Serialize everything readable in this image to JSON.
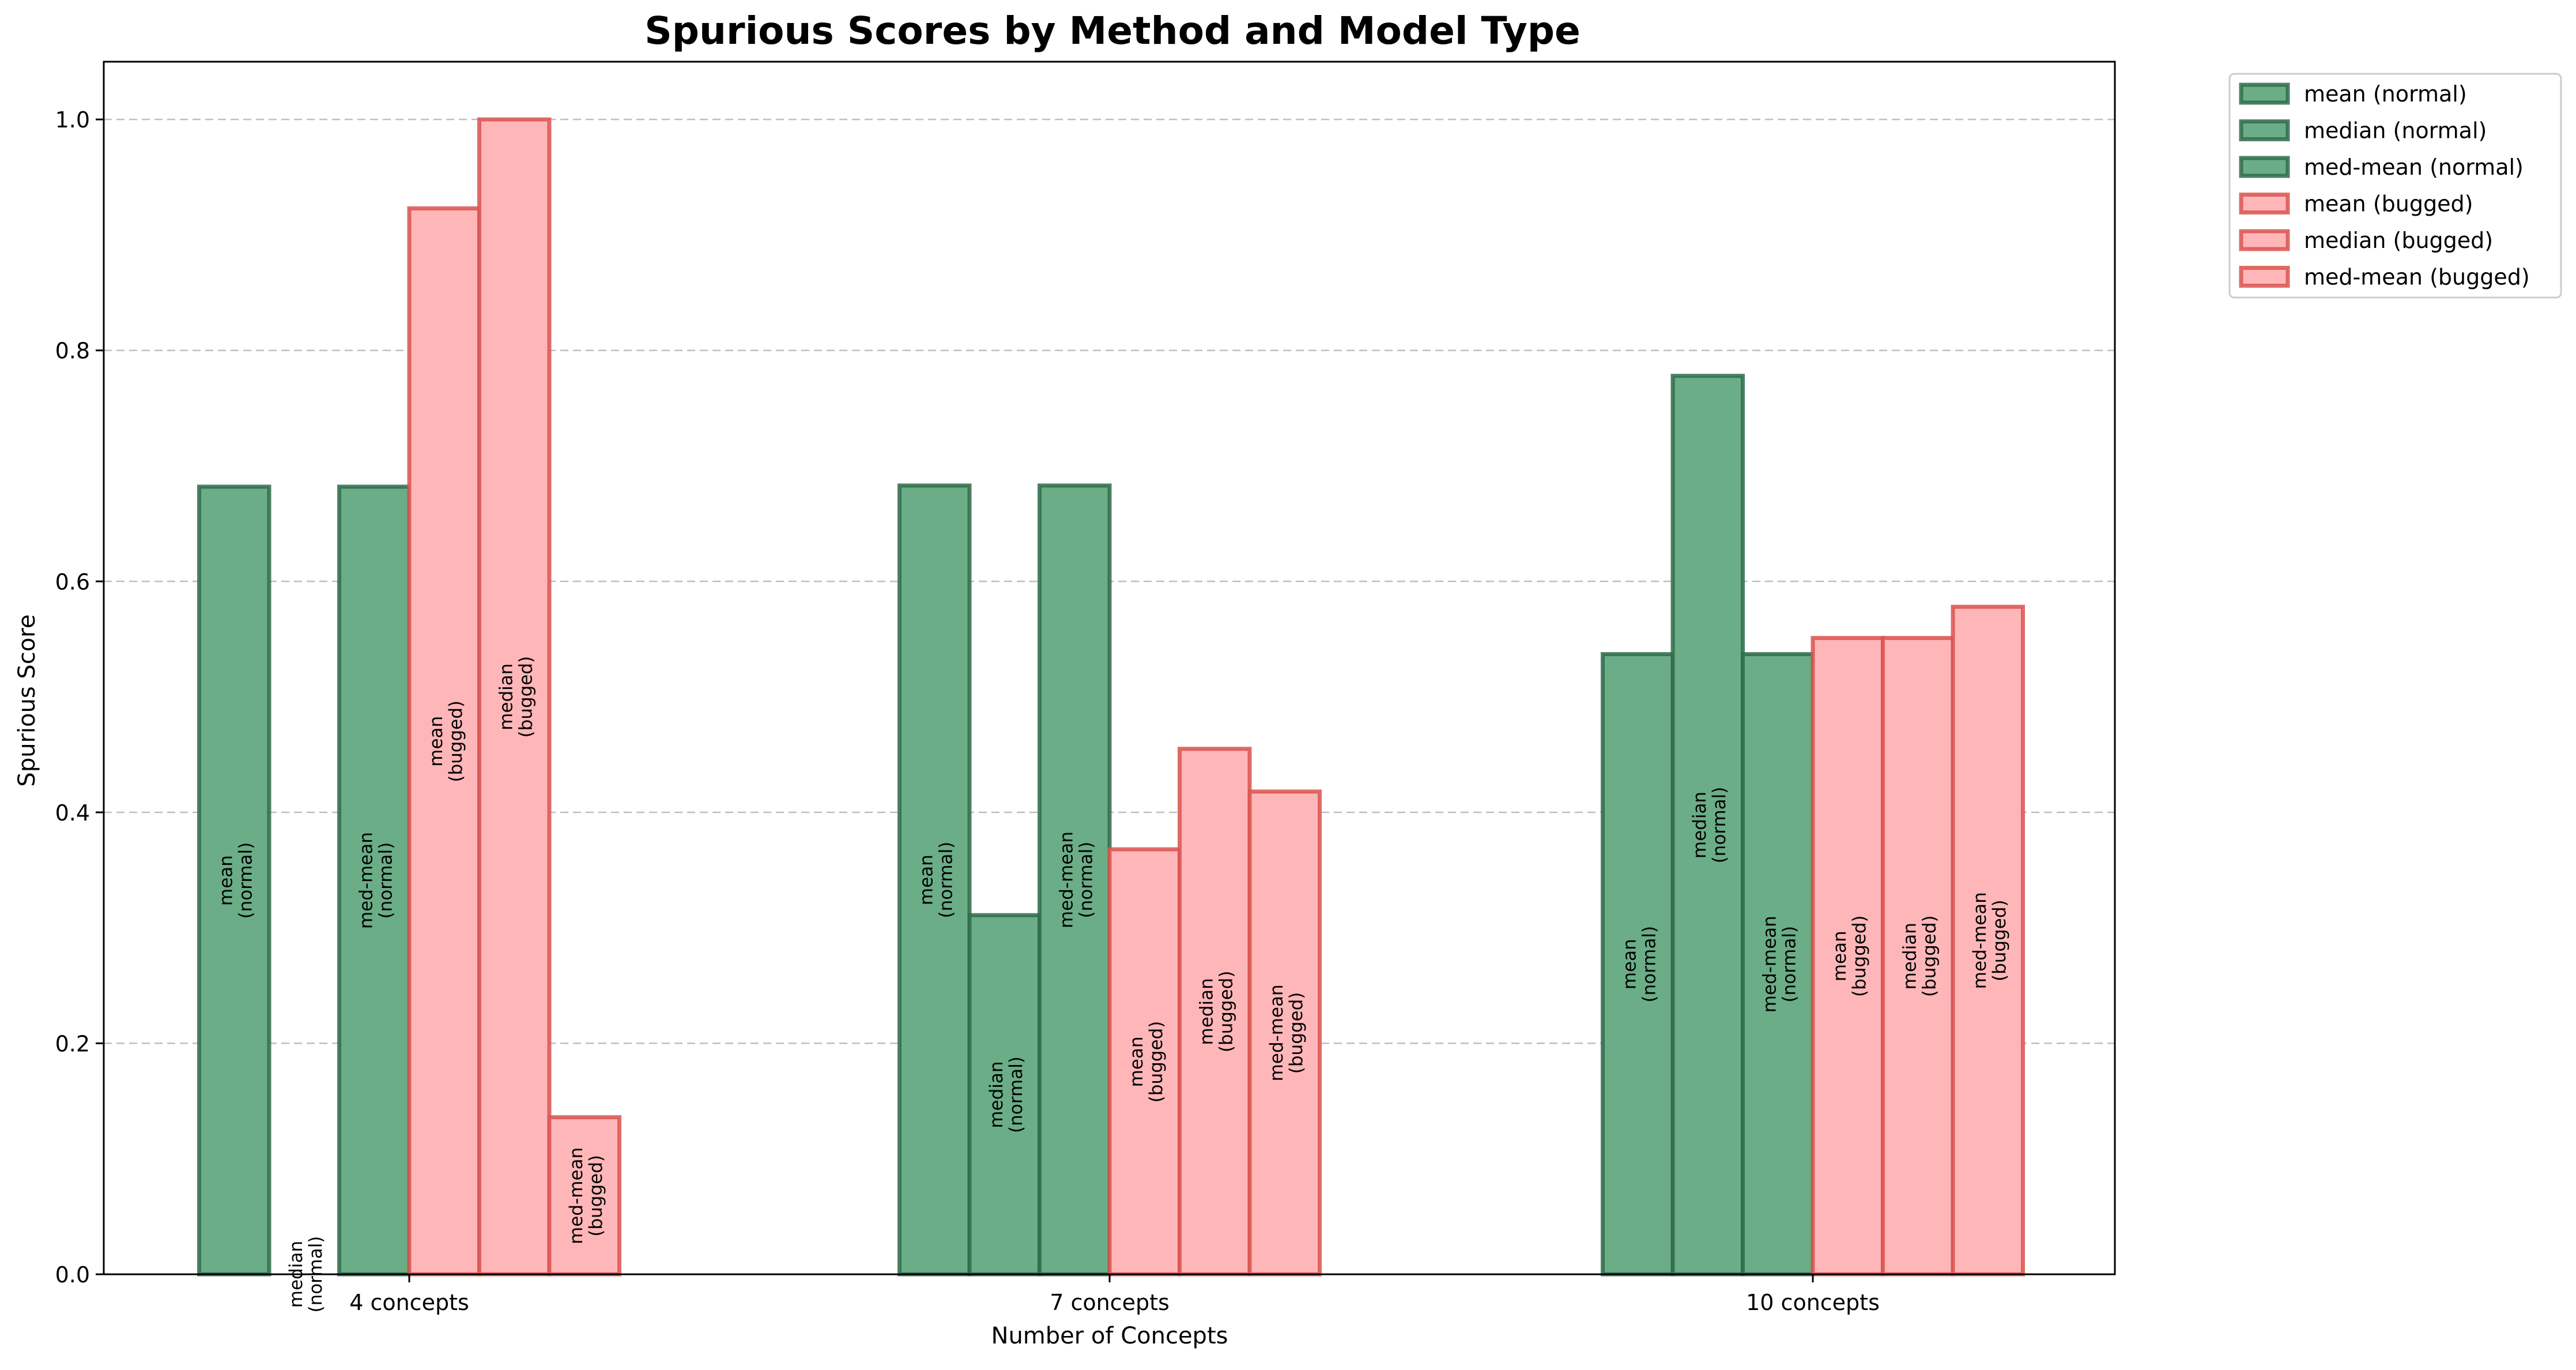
{
  "chart_data": {
    "type": "bar",
    "title": "Spurious Scores by Method and Model Type",
    "xlabel": "Number of Concepts",
    "ylabel": "Spurious Score",
    "categories": [
      "4 concepts",
      "7 concepts",
      "10 concepts"
    ],
    "ylim": [
      0,
      1.05
    ],
    "yticks": [
      "0.0",
      "0.2",
      "0.4",
      "0.6",
      "0.8",
      "1.0"
    ],
    "grid": "y dashed",
    "legend_position": "outside top-right",
    "colors": {
      "normal_fill": "#6aad87",
      "normal_edge": "#2f6b4a",
      "bugged_fill": "#ffb6b9",
      "bugged_edge": "#d9534f"
    },
    "series": [
      {
        "name": "mean (normal)",
        "bar_label": [
          "mean",
          "(normal)"
        ],
        "group": "normal",
        "values": [
          0.682,
          0.683,
          0.537
        ]
      },
      {
        "name": "median (normal)",
        "bar_label": [
          "median",
          "(normal)"
        ],
        "group": "normal",
        "values": [
          0.0,
          0.311,
          0.778
        ]
      },
      {
        "name": "med-mean (normal)",
        "bar_label": [
          "med-mean",
          "(normal)"
        ],
        "group": "normal",
        "values": [
          0.682,
          0.683,
          0.537
        ]
      },
      {
        "name": "mean (bugged)",
        "bar_label": [
          "mean",
          "(bugged)"
        ],
        "group": "bugged",
        "values": [
          0.923,
          0.368,
          0.551
        ]
      },
      {
        "name": "median (bugged)",
        "bar_label": [
          "median",
          "(bugged)"
        ],
        "group": "bugged",
        "values": [
          1.0,
          0.455,
          0.551
        ]
      },
      {
        "name": "med-mean (bugged)",
        "bar_label": [
          "med-mean",
          "(bugged)"
        ],
        "group": "bugged",
        "values": [
          0.136,
          0.418,
          0.578
        ]
      }
    ]
  }
}
